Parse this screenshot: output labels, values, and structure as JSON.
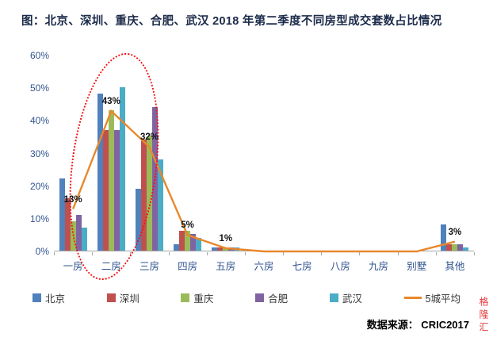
{
  "source": "数据来源：  CRIC2017",
  "watermark": "格隆汇",
  "chart_data": {
    "type": "bar",
    "title": "图：北京、深圳、重庆、合肥、武汉 2018 年第二季度不同房型成交套数占比情况",
    "xlabel": "",
    "ylabel": "",
    "ylim": [
      0,
      60
    ],
    "grid": false,
    "legend_position": "bottom",
    "categories": [
      "一房",
      "二房",
      "三房",
      "四房",
      "五房",
      "六房",
      "七房",
      "八房",
      "九房",
      "别墅",
      "其他"
    ],
    "y_ticks": [
      {
        "v": 0,
        "label": "0%"
      },
      {
        "v": 10,
        "label": "10%"
      },
      {
        "v": 20,
        "label": "20%"
      },
      {
        "v": 30,
        "label": "30%"
      },
      {
        "v": 40,
        "label": "40%"
      },
      {
        "v": 50,
        "label": "50%"
      },
      {
        "v": 60,
        "label": "60%"
      }
    ],
    "series": [
      {
        "name": "北京",
        "color": "#4F81BD",
        "values": [
          22,
          48,
          19,
          2,
          1,
          0,
          0,
          0,
          0,
          0,
          8
        ]
      },
      {
        "name": "深圳",
        "color": "#C0504D",
        "values": [
          16,
          37,
          34,
          6,
          1,
          0,
          0,
          0,
          0,
          0,
          2
        ]
      },
      {
        "name": "重庆",
        "color": "#9BBB59",
        "values": [
          9,
          43,
          35,
          6,
          1,
          0,
          0,
          0,
          0,
          0,
          2
        ]
      },
      {
        "name": "合肥",
        "color": "#8064A2",
        "values": [
          11,
          37,
          44,
          5,
          1,
          0,
          0,
          0,
          0,
          0,
          2
        ]
      },
      {
        "name": "武汉",
        "color": "#4BACC6",
        "values": [
          7,
          50,
          28,
          4,
          1,
          0,
          0,
          0,
          0,
          0,
          1
        ]
      }
    ],
    "line_series": {
      "name": "5城平均",
      "color": "#E8882C",
      "values": [
        13,
        43,
        32,
        5,
        1,
        0,
        0,
        0,
        0,
        0,
        3
      ],
      "labels": [
        "13%",
        "43%",
        "32%",
        "5%",
        "1%",
        "",
        "",
        "",
        "",
        "",
        "3%"
      ]
    }
  }
}
